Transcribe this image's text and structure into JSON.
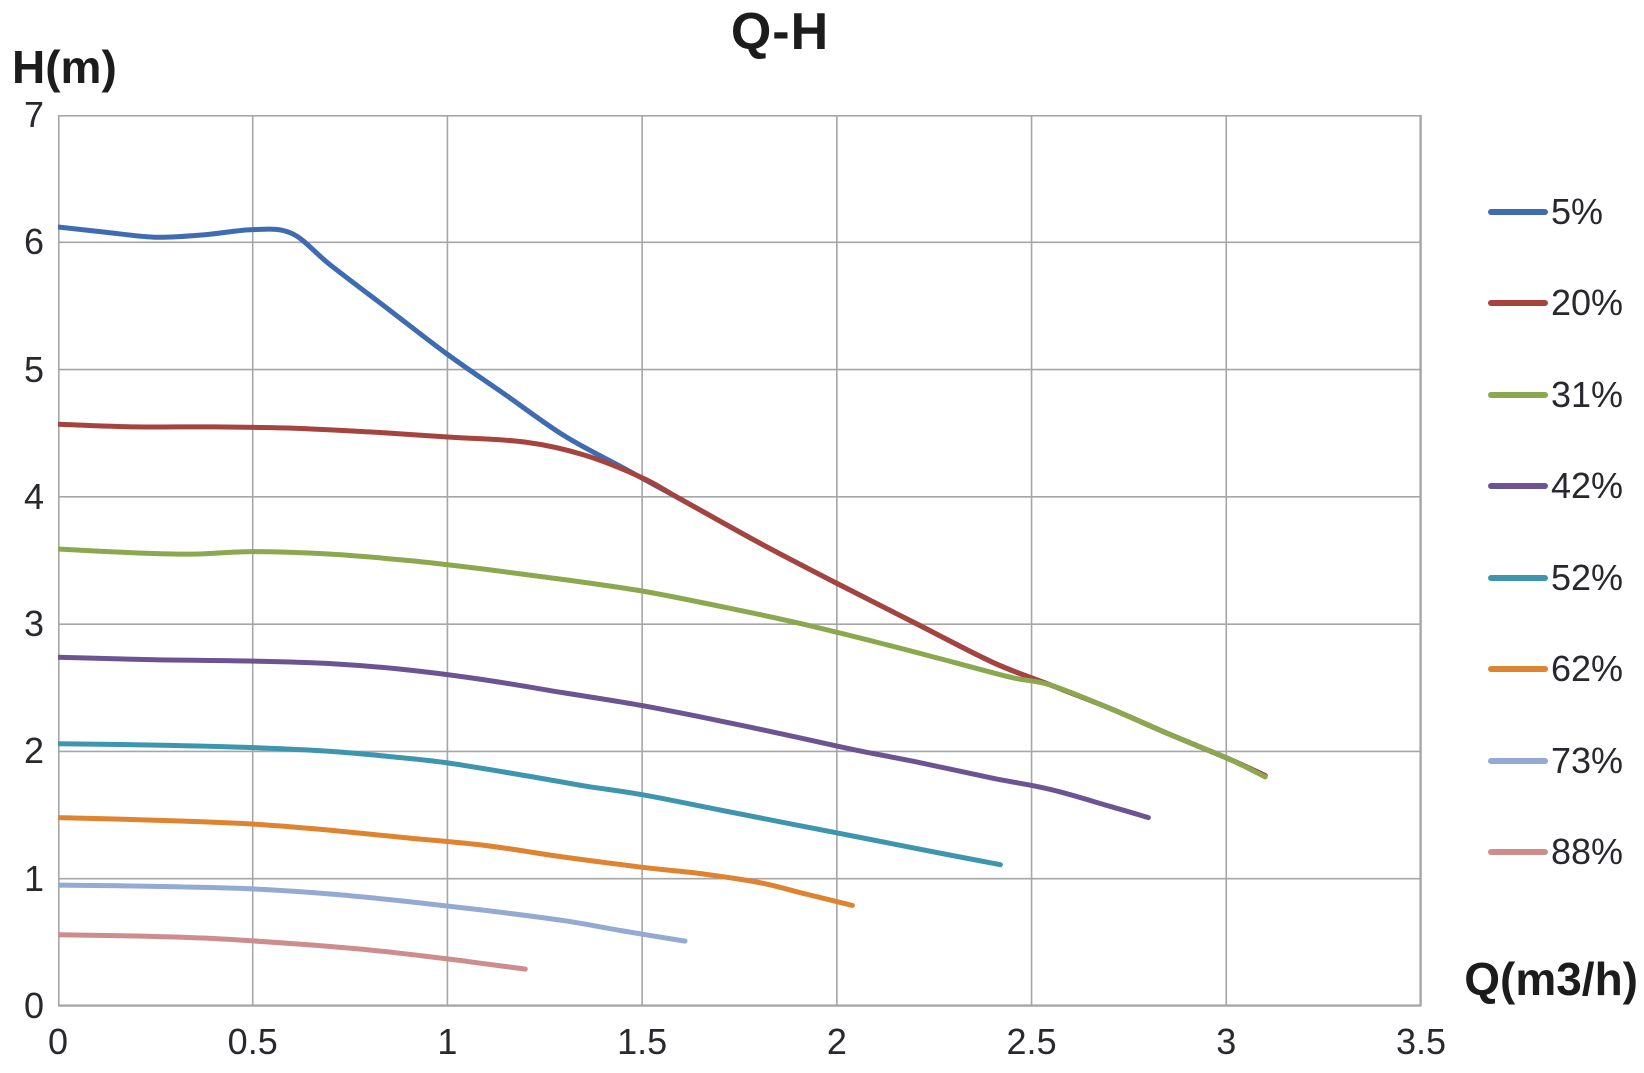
{
  "chart_data": {
    "type": "line",
    "title": "Q-H",
    "xlabel": "Q(m3/h)",
    "ylabel": "H(m)",
    "xlim": [
      0,
      3.5
    ],
    "ylim": [
      0,
      7
    ],
    "grid": true,
    "legend_position": "right",
    "grid_color": "#a6a6a6",
    "x_ticks": [
      "0",
      "0.5",
      "1",
      "1.5",
      "2",
      "2.5",
      "3",
      "3.5"
    ],
    "y_ticks": [
      "0",
      "1",
      "2",
      "3",
      "4",
      "5",
      "6",
      "7"
    ],
    "series": [
      {
        "name": "5%",
        "color": "#3f6cb0",
        "points": [
          [
            0,
            6.12
          ],
          [
            0.12,
            6.08
          ],
          [
            0.25,
            6.04
          ],
          [
            0.38,
            6.06
          ],
          [
            0.5,
            6.1
          ],
          [
            0.6,
            6.07
          ],
          [
            0.7,
            5.82
          ],
          [
            0.85,
            5.47
          ],
          [
            1.0,
            5.12
          ],
          [
            1.15,
            4.8
          ],
          [
            1.3,
            4.48
          ],
          [
            1.45,
            4.23
          ],
          [
            1.6,
            3.98
          ],
          [
            1.8,
            3.64
          ],
          [
            2.0,
            3.32
          ],
          [
            2.2,
            3.01
          ],
          [
            2.4,
            2.7
          ],
          [
            2.55,
            2.52
          ],
          [
            2.7,
            2.34
          ],
          [
            2.85,
            2.14
          ],
          [
            3.0,
            1.95
          ],
          [
            3.1,
            1.81
          ]
        ]
      },
      {
        "name": "20%",
        "color": "#a5433f",
        "points": [
          [
            0,
            4.57
          ],
          [
            0.2,
            4.55
          ],
          [
            0.4,
            4.55
          ],
          [
            0.6,
            4.54
          ],
          [
            0.8,
            4.51
          ],
          [
            1.0,
            4.47
          ],
          [
            1.2,
            4.43
          ],
          [
            1.35,
            4.33
          ],
          [
            1.5,
            4.15
          ],
          [
            1.6,
            3.98
          ],
          [
            1.8,
            3.64
          ],
          [
            2.0,
            3.32
          ],
          [
            2.2,
            3.01
          ],
          [
            2.4,
            2.7
          ],
          [
            2.55,
            2.52
          ],
          [
            2.7,
            2.34
          ],
          [
            2.85,
            2.14
          ],
          [
            3.0,
            1.95
          ],
          [
            3.1,
            1.81
          ]
        ]
      },
      {
        "name": "31%",
        "color": "#8ba84e",
        "points": [
          [
            0,
            3.59
          ],
          [
            0.2,
            3.56
          ],
          [
            0.35,
            3.55
          ],
          [
            0.5,
            3.57
          ],
          [
            0.7,
            3.55
          ],
          [
            0.9,
            3.5
          ],
          [
            1.1,
            3.43
          ],
          [
            1.3,
            3.35
          ],
          [
            1.5,
            3.26
          ],
          [
            1.7,
            3.14
          ],
          [
            1.9,
            3.01
          ],
          [
            2.1,
            2.86
          ],
          [
            2.3,
            2.7
          ],
          [
            2.45,
            2.58
          ],
          [
            2.55,
            2.52
          ],
          [
            2.7,
            2.34
          ],
          [
            2.85,
            2.14
          ],
          [
            3.0,
            1.95
          ],
          [
            3.1,
            1.8
          ]
        ]
      },
      {
        "name": "42%",
        "color": "#6c5493",
        "points": [
          [
            0,
            2.74
          ],
          [
            0.25,
            2.72
          ],
          [
            0.5,
            2.71
          ],
          [
            0.7,
            2.69
          ],
          [
            0.9,
            2.64
          ],
          [
            1.1,
            2.56
          ],
          [
            1.3,
            2.46
          ],
          [
            1.5,
            2.36
          ],
          [
            1.7,
            2.24
          ],
          [
            1.9,
            2.11
          ],
          [
            2.05,
            2.01
          ],
          [
            2.2,
            1.92
          ],
          [
            2.4,
            1.79
          ],
          [
            2.55,
            1.7
          ],
          [
            2.7,
            1.57
          ],
          [
            2.8,
            1.48
          ]
        ]
      },
      {
        "name": "52%",
        "color": "#3d96ae",
        "points": [
          [
            0,
            2.06
          ],
          [
            0.25,
            2.05
          ],
          [
            0.5,
            2.03
          ],
          [
            0.7,
            2.0
          ],
          [
            0.85,
            1.96
          ],
          [
            1.0,
            1.91
          ],
          [
            1.2,
            1.81
          ],
          [
            1.35,
            1.73
          ],
          [
            1.5,
            1.66
          ],
          [
            1.7,
            1.54
          ],
          [
            1.9,
            1.42
          ],
          [
            2.1,
            1.3
          ],
          [
            2.25,
            1.21
          ],
          [
            2.42,
            1.11
          ]
        ]
      },
      {
        "name": "62%",
        "color": "#de8330",
        "points": [
          [
            0,
            1.48
          ],
          [
            0.25,
            1.46
          ],
          [
            0.5,
            1.43
          ],
          [
            0.7,
            1.38
          ],
          [
            0.9,
            1.32
          ],
          [
            1.1,
            1.26
          ],
          [
            1.3,
            1.17
          ],
          [
            1.5,
            1.09
          ],
          [
            1.65,
            1.04
          ],
          [
            1.8,
            0.97
          ],
          [
            1.92,
            0.88
          ],
          [
            2.04,
            0.79
          ]
        ]
      },
      {
        "name": "73%",
        "color": "#94aad2",
        "points": [
          [
            0,
            0.95
          ],
          [
            0.25,
            0.94
          ],
          [
            0.5,
            0.92
          ],
          [
            0.7,
            0.88
          ],
          [
            0.9,
            0.82
          ],
          [
            1.1,
            0.75
          ],
          [
            1.3,
            0.67
          ],
          [
            1.45,
            0.59
          ],
          [
            1.61,
            0.51
          ]
        ]
      },
      {
        "name": "88%",
        "color": "#cd8d8c",
        "points": [
          [
            0,
            0.56
          ],
          [
            0.2,
            0.55
          ],
          [
            0.4,
            0.53
          ],
          [
            0.6,
            0.49
          ],
          [
            0.8,
            0.44
          ],
          [
            1.0,
            0.37
          ],
          [
            1.1,
            0.33
          ],
          [
            1.2,
            0.29
          ]
        ]
      }
    ]
  }
}
